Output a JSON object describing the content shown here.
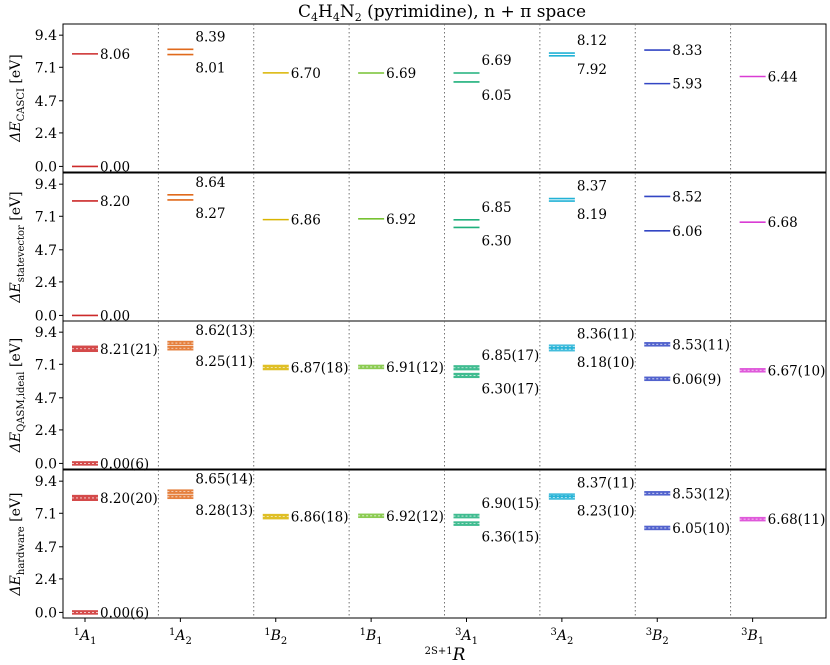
{
  "title": {
    "formula_parts": [
      "C",
      "4",
      "H",
      "4",
      "N",
      "2"
    ],
    "rest": " (pyrimidine), n + π space"
  },
  "xlabel": {
    "sup": "2S+1",
    "main": "R"
  },
  "chart_data": {
    "type": "scatter",
    "title": "C4H4N2 (pyrimidine), n + π space",
    "xlabel": "2S+1 R",
    "categories": [
      {
        "sup": "1",
        "base": "A",
        "sub": "1"
      },
      {
        "sup": "1",
        "base": "A",
        "sub": "2"
      },
      {
        "sup": "1",
        "base": "B",
        "sub": "2"
      },
      {
        "sup": "1",
        "base": "B",
        "sub": "1"
      },
      {
        "sup": "3",
        "base": "A",
        "sub": "1"
      },
      {
        "sup": "3",
        "base": "A",
        "sub": "2"
      },
      {
        "sup": "3",
        "base": "B",
        "sub": "2"
      },
      {
        "sup": "3",
        "base": "B",
        "sub": "1"
      }
    ],
    "category_colors": [
      "#cc2a2a",
      "#e06a1c",
      "#d9b400",
      "#77c232",
      "#1fb07c",
      "#22b2d6",
      "#3346c4",
      "#d93cd4"
    ],
    "ylim": [
      -0.4,
      10.2
    ],
    "yticks": [
      "0.0",
      "2.4",
      "4.7",
      "7.1",
      "9.4"
    ],
    "ytick_values": [
      0.0,
      2.4,
      4.7,
      7.1,
      9.4
    ],
    "panels": [
      {
        "ylabel_main": "ΔE",
        "ylabel_sub": "CASCI",
        "ylabel_unit": " [eV]",
        "uncertainty": false,
        "levels": [
          [
            {
              "v": 8.06,
              "t": "8.06"
            },
            {
              "v": 0.0,
              "t": "0.00"
            }
          ],
          [
            {
              "v": 8.39,
              "t": "8.39"
            },
            {
              "v": 8.01,
              "t": "8.01"
            }
          ],
          [
            {
              "v": 6.7,
              "t": "6.70"
            }
          ],
          [
            {
              "v": 6.69,
              "t": "6.69"
            }
          ],
          [
            {
              "v": 6.69,
              "t": "6.69"
            },
            {
              "v": 6.05,
              "t": "6.05"
            }
          ],
          [
            {
              "v": 8.12,
              "t": "8.12"
            },
            {
              "v": 7.92,
              "t": "7.92"
            }
          ],
          [
            {
              "v": 8.33,
              "t": "8.33"
            },
            {
              "v": 5.93,
              "t": "5.93"
            }
          ],
          [
            {
              "v": 6.44,
              "t": "6.44"
            }
          ]
        ]
      },
      {
        "ylabel_main": "ΔE",
        "ylabel_sub": "statevector",
        "ylabel_unit": " [eV]",
        "uncertainty": false,
        "levels": [
          [
            {
              "v": 8.2,
              "t": "8.20"
            },
            {
              "v": 0.0,
              "t": "0.00"
            }
          ],
          [
            {
              "v": 8.64,
              "t": "8.64"
            },
            {
              "v": 8.27,
              "t": "8.27"
            }
          ],
          [
            {
              "v": 6.86,
              "t": "6.86"
            }
          ],
          [
            {
              "v": 6.92,
              "t": "6.92"
            }
          ],
          [
            {
              "v": 6.85,
              "t": "6.85"
            },
            {
              "v": 6.3,
              "t": "6.30"
            }
          ],
          [
            {
              "v": 8.37,
              "t": "8.37"
            },
            {
              "v": 8.19,
              "t": "8.19"
            }
          ],
          [
            {
              "v": 8.52,
              "t": "8.52"
            },
            {
              "v": 6.06,
              "t": "6.06"
            }
          ],
          [
            {
              "v": 6.68,
              "t": "6.68"
            }
          ]
        ]
      },
      {
        "ylabel_main": "ΔE",
        "ylabel_sub": "QASM,ideal",
        "ylabel_unit": " [eV]",
        "uncertainty": true,
        "levels": [
          [
            {
              "v": 8.21,
              "e": 0.21,
              "t": "8.21(21)"
            },
            {
              "v": 0.0,
              "e": 0.06,
              "t": "0.00(6)"
            }
          ],
          [
            {
              "v": 8.62,
              "e": 0.13,
              "t": "8.62(13)"
            },
            {
              "v": 8.25,
              "e": 0.11,
              "t": "8.25(11)"
            }
          ],
          [
            {
              "v": 6.87,
              "e": 0.18,
              "t": "6.87(18)"
            }
          ],
          [
            {
              "v": 6.91,
              "e": 0.12,
              "t": "6.91(12)"
            }
          ],
          [
            {
              "v": 6.85,
              "e": 0.17,
              "t": "6.85(17)"
            },
            {
              "v": 6.3,
              "e": 0.17,
              "t": "6.30(17)"
            }
          ],
          [
            {
              "v": 8.36,
              "e": 0.11,
              "t": "8.36(11)"
            },
            {
              "v": 8.18,
              "e": 0.1,
              "t": "8.18(10)"
            }
          ],
          [
            {
              "v": 8.53,
              "e": 0.11,
              "t": "8.53(11)"
            },
            {
              "v": 6.06,
              "e": 0.09,
              "t": "6.06(9)"
            }
          ],
          [
            {
              "v": 6.67,
              "e": 0.1,
              "t": "6.67(10)"
            }
          ]
        ]
      },
      {
        "ylabel_main": "ΔE",
        "ylabel_sub": "hardware",
        "ylabel_unit": " [eV]",
        "uncertainty": true,
        "levels": [
          [
            {
              "v": 8.2,
              "e": 0.2,
              "t": "8.20(20)"
            },
            {
              "v": 0.0,
              "e": 0.06,
              "t": "0.00(6)"
            }
          ],
          [
            {
              "v": 8.65,
              "e": 0.14,
              "t": "8.65(14)"
            },
            {
              "v": 8.28,
              "e": 0.13,
              "t": "8.28(13)"
            }
          ],
          [
            {
              "v": 6.86,
              "e": 0.18,
              "t": "6.86(18)"
            }
          ],
          [
            {
              "v": 6.92,
              "e": 0.12,
              "t": "6.92(12)"
            }
          ],
          [
            {
              "v": 6.9,
              "e": 0.15,
              "t": "6.90(15)"
            },
            {
              "v": 6.36,
              "e": 0.15,
              "t": "6.36(15)"
            }
          ],
          [
            {
              "v": 8.37,
              "e": 0.11,
              "t": "8.37(11)"
            },
            {
              "v": 8.23,
              "e": 0.1,
              "t": "8.23(10)"
            }
          ],
          [
            {
              "v": 8.53,
              "e": 0.12,
              "t": "8.53(12)"
            },
            {
              "v": 6.05,
              "e": 0.1,
              "t": "6.05(10)"
            }
          ],
          [
            {
              "v": 6.68,
              "e": 0.11,
              "t": "6.68(11)"
            }
          ]
        ]
      }
    ]
  }
}
